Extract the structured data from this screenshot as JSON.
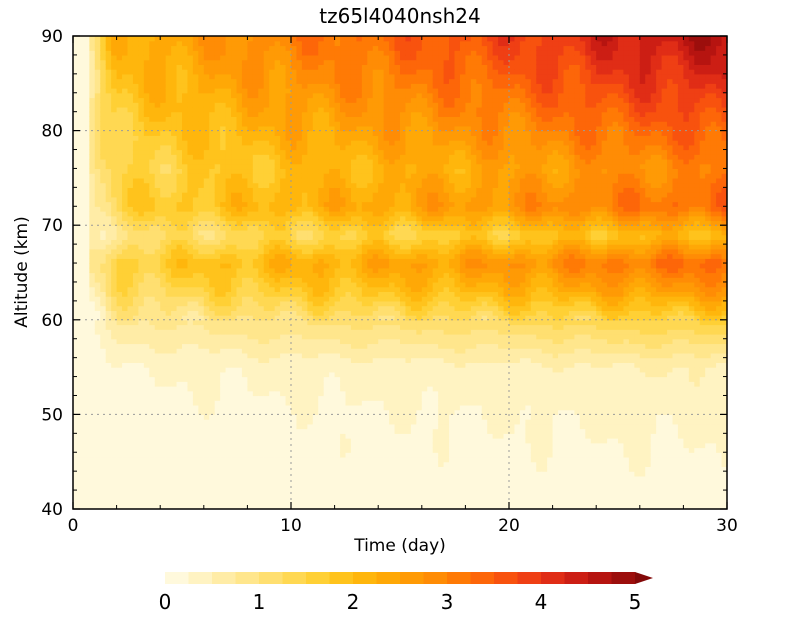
{
  "chart_data": {
    "type": "heatmap",
    "title": "tz65l4040nsh24",
    "xlabel": "Time (day)",
    "ylabel": "Altitude (km)",
    "xlim": [
      0,
      30
    ],
    "ylim": [
      40,
      90
    ],
    "x_ticks": [
      "0",
      "10",
      "20",
      "30"
    ],
    "y_ticks": [
      "40",
      "50",
      "60",
      "70",
      "80",
      "90"
    ],
    "grid": true,
    "colorbar": {
      "position": "bottom",
      "range": [
        0,
        5
      ],
      "tick_labels": [
        "0",
        "1",
        "2",
        "3",
        "4",
        "5"
      ],
      "levels": 20,
      "extend": "max",
      "colors": [
        "#fff9dc",
        "#fff3c2",
        "#ffeca6",
        "#ffe68c",
        "#ffdf70",
        "#ffd852",
        "#ffd035",
        "#ffc31c",
        "#ffb60c",
        "#ffa806",
        "#ff9a05",
        "#ff8c05",
        "#ff7a05",
        "#fd6609",
        "#f8520e",
        "#ef3f14",
        "#e02d16",
        "#cc1e14",
        "#b61410",
        "#9c0e0c",
        "#830909"
      ]
    },
    "field_profile_by_altitude": [
      {
        "altitude": 40,
        "value": 0.1
      },
      {
        "altitude": 50,
        "value": 0.25
      },
      {
        "altitude": 55,
        "value": 0.4
      },
      {
        "altitude": 60,
        "value": 1.2
      },
      {
        "altitude": 63,
        "value": 2.0
      },
      {
        "altitude": 66,
        "value": 2.6
      },
      {
        "altitude": 69,
        "value": 1.6
      },
      {
        "altitude": 72,
        "value": 2.6
      },
      {
        "altitude": 76,
        "value": 2.3
      },
      {
        "altitude": 80,
        "value": 2.7
      },
      {
        "altitude": 85,
        "value": 3.2
      },
      {
        "altitude": 90,
        "value": 3.6
      }
    ],
    "field_trend_by_time": [
      {
        "time": 0,
        "factor": 0.05
      },
      {
        "time": 1,
        "factor": 0.3
      },
      {
        "time": 2,
        "factor": 0.6
      },
      {
        "time": 5,
        "factor": 0.7
      },
      {
        "time": 10,
        "factor": 0.85
      },
      {
        "time": 15,
        "factor": 0.95
      },
      {
        "time": 20,
        "factor": 1.05
      },
      {
        "time": 25,
        "factor": 1.2
      },
      {
        "time": 30,
        "factor": 1.3
      }
    ]
  }
}
